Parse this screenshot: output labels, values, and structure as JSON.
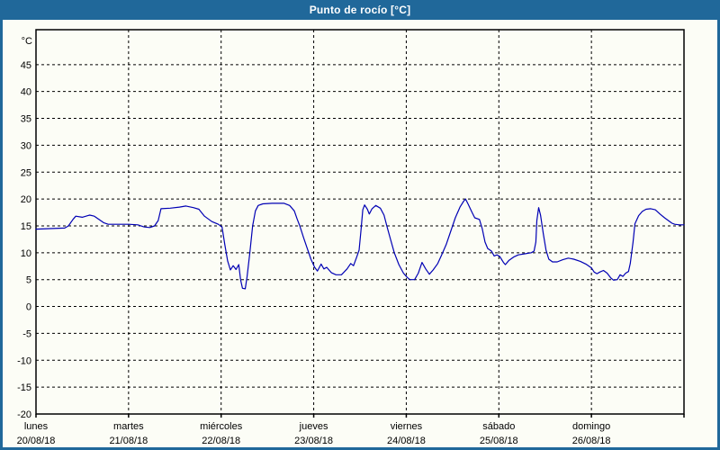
{
  "window": {
    "title": "Punto de rocío [°C]"
  },
  "colors": {
    "titlebar_bg": "#20689a",
    "frame": "#20689a",
    "content_bg": "#fcfdf6",
    "line": "#0000b4",
    "grid": "#000000",
    "text": "#000000",
    "title_text": "#ffffff"
  },
  "chart_data": {
    "type": "line",
    "title": "Punto de rocío [°C]",
    "y_unit_label": "°C",
    "ylabel": "",
    "xlabel": "",
    "ylim": [
      -20,
      51.5
    ],
    "y_tick_values": [
      45,
      40,
      35,
      30,
      25,
      20,
      15,
      10,
      5,
      0,
      -5,
      -10,
      -15,
      -20
    ],
    "x_range_days": [
      0,
      7
    ],
    "grid": "dashed",
    "legend_position": "none",
    "x_days": [
      {
        "name": "lunes",
        "date": "20/08/18"
      },
      {
        "name": "martes",
        "date": "21/08/18"
      },
      {
        "name": "miércoles",
        "date": "22/08/18"
      },
      {
        "name": "jueves",
        "date": "23/08/18"
      },
      {
        "name": "viernes",
        "date": "24/08/18"
      },
      {
        "name": "sábado",
        "date": "25/08/18"
      },
      {
        "name": "domingo",
        "date": "26/08/18"
      }
    ],
    "series": [
      {
        "name": "Punto de rocío",
        "color": "#0000b4",
        "points": [
          [
            0.0,
            14.4
          ],
          [
            0.15,
            14.5
          ],
          [
            0.31,
            14.6
          ],
          [
            0.35,
            15.0
          ],
          [
            0.4,
            16.2
          ],
          [
            0.43,
            16.8
          ],
          [
            0.5,
            16.6
          ],
          [
            0.56,
            16.9
          ],
          [
            0.58,
            17.0
          ],
          [
            0.63,
            16.8
          ],
          [
            0.68,
            16.2
          ],
          [
            0.73,
            15.6
          ],
          [
            0.78,
            15.3
          ],
          [
            0.88,
            15.3
          ],
          [
            1.0,
            15.3
          ],
          [
            1.1,
            15.2
          ],
          [
            1.17,
            14.8
          ],
          [
            1.23,
            14.7
          ],
          [
            1.28,
            15.0
          ],
          [
            1.32,
            16.0
          ],
          [
            1.35,
            18.2
          ],
          [
            1.45,
            18.3
          ],
          [
            1.55,
            18.5
          ],
          [
            1.62,
            18.7
          ],
          [
            1.7,
            18.4
          ],
          [
            1.76,
            18.1
          ],
          [
            1.82,
            16.8
          ],
          [
            1.9,
            15.8
          ],
          [
            1.97,
            15.3
          ],
          [
            2.01,
            14.8
          ],
          [
            2.04,
            11.5
          ],
          [
            2.07,
            8.5
          ],
          [
            2.1,
            6.8
          ],
          [
            2.13,
            7.6
          ],
          [
            2.16,
            6.9
          ],
          [
            2.19,
            7.8
          ],
          [
            2.21,
            5.0
          ],
          [
            2.23,
            3.4
          ],
          [
            2.26,
            3.3
          ],
          [
            2.28,
            5.5
          ],
          [
            2.31,
            10.0
          ],
          [
            2.34,
            15.0
          ],
          [
            2.37,
            17.8
          ],
          [
            2.4,
            18.8
          ],
          [
            2.45,
            19.1
          ],
          [
            2.55,
            19.2
          ],
          [
            2.68,
            19.2
          ],
          [
            2.74,
            18.8
          ],
          [
            2.79,
            17.8
          ],
          [
            2.82,
            16.3
          ],
          [
            2.85,
            15.0
          ],
          [
            2.89,
            12.8
          ],
          [
            2.93,
            10.8
          ],
          [
            2.97,
            8.8
          ],
          [
            3.01,
            7.3
          ],
          [
            3.04,
            6.6
          ],
          [
            3.08,
            7.9
          ],
          [
            3.11,
            7.0
          ],
          [
            3.14,
            7.3
          ],
          [
            3.19,
            6.3
          ],
          [
            3.24,
            5.9
          ],
          [
            3.3,
            5.9
          ],
          [
            3.36,
            7.0
          ],
          [
            3.4,
            8.0
          ],
          [
            3.43,
            7.6
          ],
          [
            3.46,
            9.0
          ],
          [
            3.49,
            10.5
          ],
          [
            3.51,
            14.0
          ],
          [
            3.53,
            18.0
          ],
          [
            3.55,
            18.9
          ],
          [
            3.58,
            18.1
          ],
          [
            3.6,
            17.2
          ],
          [
            3.63,
            18.2
          ],
          [
            3.67,
            18.8
          ],
          [
            3.72,
            18.3
          ],
          [
            3.76,
            17.0
          ],
          [
            3.79,
            15.0
          ],
          [
            3.83,
            12.5
          ],
          [
            3.87,
            10.0
          ],
          [
            3.92,
            7.8
          ],
          [
            3.97,
            6.2
          ],
          [
            4.01,
            5.4
          ],
          [
            4.04,
            5.0
          ],
          [
            4.09,
            5.0
          ],
          [
            4.13,
            6.2
          ],
          [
            4.17,
            8.2
          ],
          [
            4.21,
            7.0
          ],
          [
            4.25,
            6.0
          ],
          [
            4.29,
            6.8
          ],
          [
            4.34,
            8.0
          ],
          [
            4.38,
            9.5
          ],
          [
            4.43,
            11.5
          ],
          [
            4.48,
            14.0
          ],
          [
            4.53,
            16.5
          ],
          [
            4.58,
            18.5
          ],
          [
            4.62,
            19.6
          ],
          [
            4.64,
            20.0
          ],
          [
            4.67,
            19.0
          ],
          [
            4.71,
            17.5
          ],
          [
            4.74,
            16.5
          ],
          [
            4.79,
            16.2
          ],
          [
            4.82,
            14.5
          ],
          [
            4.85,
            12.0
          ],
          [
            4.88,
            10.8
          ],
          [
            4.92,
            10.3
          ],
          [
            4.95,
            9.4
          ],
          [
            4.98,
            9.6
          ],
          [
            5.01,
            9.3
          ],
          [
            5.05,
            8.2
          ],
          [
            5.07,
            7.8
          ],
          [
            5.11,
            8.6
          ],
          [
            5.16,
            9.2
          ],
          [
            5.21,
            9.6
          ],
          [
            5.28,
            9.8
          ],
          [
            5.35,
            10.0
          ],
          [
            5.38,
            10.3
          ],
          [
            5.4,
            12.0
          ],
          [
            5.41,
            16.0
          ],
          [
            5.43,
            18.4
          ],
          [
            5.45,
            17.0
          ],
          [
            5.48,
            13.5
          ],
          [
            5.51,
            10.5
          ],
          [
            5.54,
            8.8
          ],
          [
            5.58,
            8.3
          ],
          [
            5.63,
            8.3
          ],
          [
            5.69,
            8.7
          ],
          [
            5.75,
            9.0
          ],
          [
            5.81,
            8.8
          ],
          [
            5.88,
            8.4
          ],
          [
            5.94,
            7.9
          ],
          [
            6.0,
            7.2
          ],
          [
            6.03,
            6.4
          ],
          [
            6.06,
            6.1
          ],
          [
            6.09,
            6.4
          ],
          [
            6.13,
            6.7
          ],
          [
            6.17,
            6.2
          ],
          [
            6.21,
            5.3
          ],
          [
            6.24,
            4.9
          ],
          [
            6.28,
            5.0
          ],
          [
            6.31,
            5.9
          ],
          [
            6.34,
            5.6
          ],
          [
            6.37,
            6.2
          ],
          [
            6.4,
            6.5
          ],
          [
            6.42,
            8.0
          ],
          [
            6.45,
            12.0
          ],
          [
            6.47,
            15.4
          ],
          [
            6.51,
            16.9
          ],
          [
            6.55,
            17.7
          ],
          [
            6.59,
            18.1
          ],
          [
            6.64,
            18.2
          ],
          [
            6.69,
            18.0
          ],
          [
            6.74,
            17.2
          ],
          [
            6.79,
            16.5
          ],
          [
            6.83,
            16.0
          ],
          [
            6.87,
            15.5
          ],
          [
            6.9,
            15.3
          ],
          [
            6.95,
            15.2
          ],
          [
            7.0,
            15.2
          ]
        ]
      }
    ]
  }
}
